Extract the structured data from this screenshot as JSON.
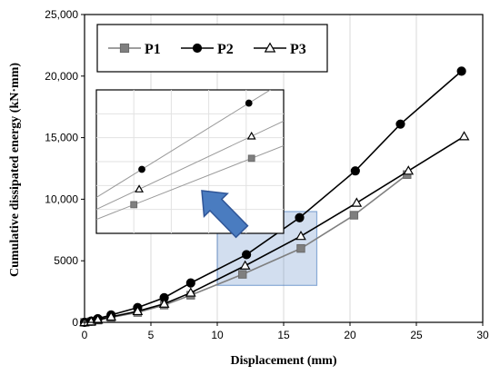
{
  "chart_data": {
    "type": "line",
    "xlabel": "Displacement (mm)",
    "ylabel": "Cumulative dissipated energy (kN·mm)",
    "xlim": [
      0,
      30
    ],
    "ylim": [
      0,
      25000
    ],
    "x_ticks": [
      "0",
      "5",
      "10",
      "15",
      "20",
      "25",
      "30"
    ],
    "y_ticks": [
      "0",
      "5000",
      "10,000",
      "15,000",
      "20,000",
      "25,000"
    ],
    "grid": "vertical",
    "legend_position": "top-left",
    "series": [
      {
        "name": "P1",
        "marker": "square",
        "color": "#7f7f7f",
        "x": [
          0,
          0.5,
          1,
          2,
          4,
          6,
          8,
          11.9,
          16.3,
          20.3,
          24.3
        ],
        "y": [
          0,
          50,
          180,
          400,
          800,
          1400,
          2200,
          3900,
          6000,
          8700,
          12000
        ]
      },
      {
        "name": "P2",
        "marker": "circle",
        "color": "#000000",
        "x": [
          0,
          0.5,
          1,
          2,
          4,
          6,
          8,
          12.2,
          16.2,
          20.4,
          23.8,
          28.4
        ],
        "y": [
          0,
          100,
          300,
          600,
          1200,
          2000,
          3200,
          5500,
          8500,
          12300,
          16100,
          20400
        ]
      },
      {
        "name": "P3",
        "marker": "triangle",
        "color": "#000000",
        "x": [
          0,
          0.5,
          1,
          2,
          4,
          6,
          8,
          12.1,
          16.3,
          20.5,
          24.4,
          28.6
        ],
        "y": [
          0,
          60,
          200,
          450,
          900,
          1500,
          2400,
          4600,
          7000,
          9700,
          12300,
          15100
        ]
      }
    ],
    "highlight_region": {
      "x": [
        10,
        17.5
      ],
      "y": [
        3000,
        9000
      ],
      "color": "#4a7cc0"
    },
    "inset": {
      "description_free": true,
      "points": [
        {
          "series": "P1",
          "x": [
            11.9,
            16.3
          ],
          "y": [
            3900,
            6000
          ]
        },
        {
          "series": "P2",
          "x": [
            12.2,
            16.2
          ],
          "y": [
            5500,
            8500
          ]
        },
        {
          "series": "P3",
          "x": [
            12.1,
            16.3
          ],
          "y": [
            4600,
            7000
          ]
        }
      ]
    },
    "arrow_color": "#4a7cc0"
  }
}
